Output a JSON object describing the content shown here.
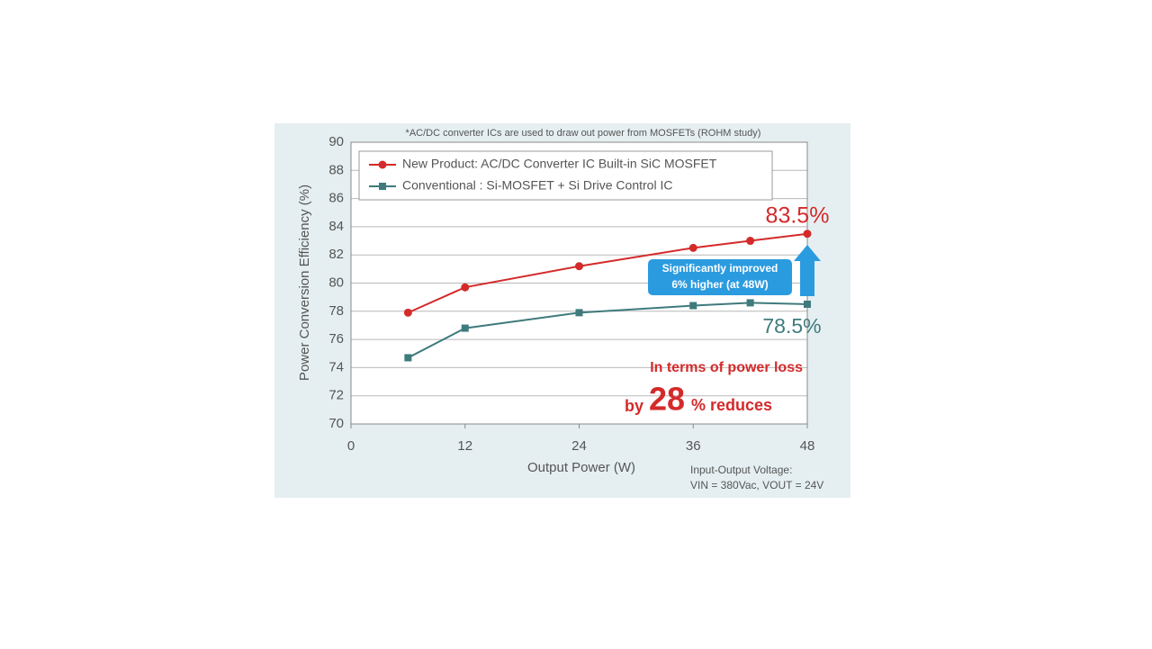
{
  "chart_data": {
    "type": "line",
    "subtitle": "*AC/DC converter ICs are used to draw out power from MOSFETs (ROHM study)",
    "x_label": "Output Power  (W)",
    "y_label": "Power Conversion Efficiency (%)",
    "x": [
      6,
      12,
      24,
      36,
      42,
      48
    ],
    "series": [
      {
        "name": "New Product: AC/DC Converter IC Built-in SiC MOSFET",
        "color": "#d42a2a",
        "marker": "circle",
        "values": [
          77.9,
          79.7,
          81.2,
          82.5,
          83.0,
          83.5
        ]
      },
      {
        "name": "Conventional : Si-MOSFET + Si Drive Control IC",
        "color": "#3f7a7c",
        "marker": "square",
        "values": [
          74.7,
          76.8,
          77.9,
          78.4,
          78.6,
          78.5
        ]
      }
    ],
    "xlim": [
      0,
      48
    ],
    "xticks": [
      0,
      12,
      24,
      36,
      48
    ],
    "ylim": [
      70,
      90
    ],
    "yticks": [
      70,
      72,
      74,
      76,
      78,
      80,
      82,
      84,
      86,
      88,
      90
    ],
    "grid": true,
    "legend": "upper-left",
    "annotations": {
      "new_value": "83.5%",
      "conventional_value": "78.5%",
      "callout_line1": "Significantly improved",
      "callout_line2": "6% higher (at 48W)",
      "loss_line1": "In terms of power loss",
      "loss_by": "by",
      "loss_number": "28",
      "loss_rest": "% reduces",
      "conditions_line1": "Input-Output Voltage:",
      "conditions_line2": "VIN = 380Vac, VOUT = 24V"
    }
  }
}
